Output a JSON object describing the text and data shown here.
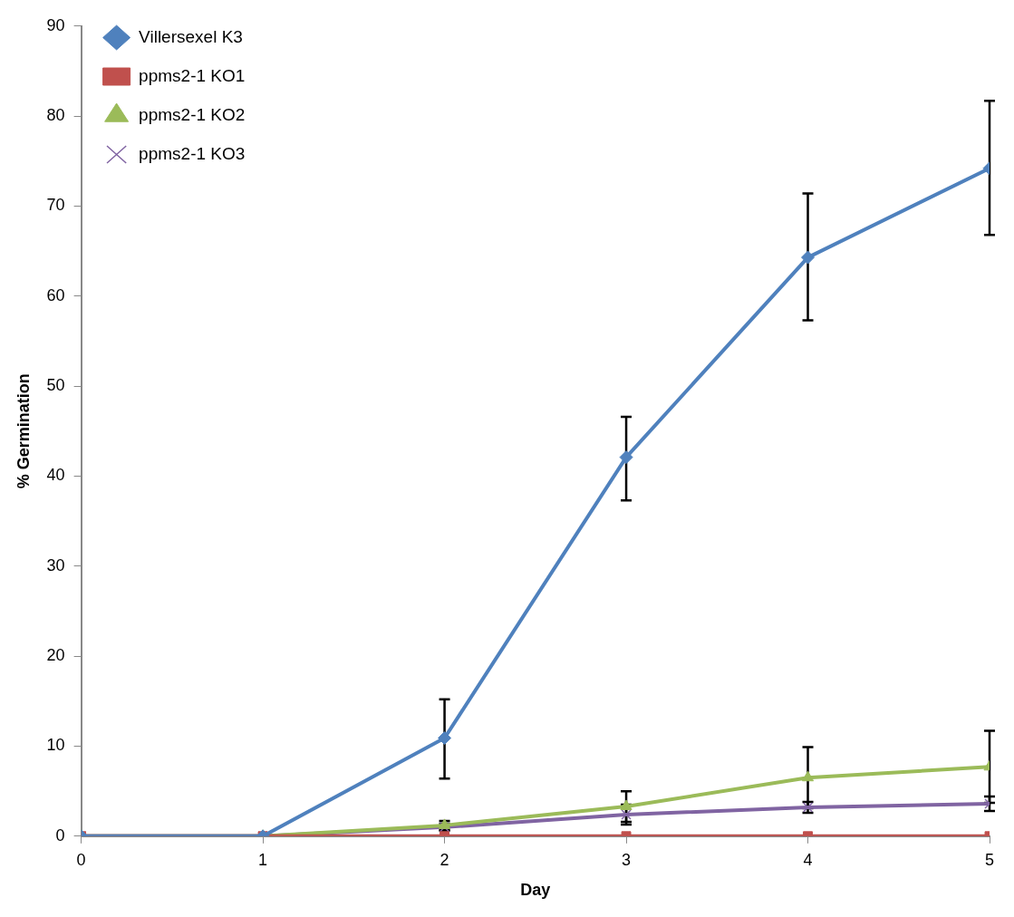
{
  "chart_data": {
    "type": "line",
    "xlabel": "Day",
    "ylabel": "% Germination",
    "x": [
      0,
      1,
      2,
      3,
      4,
      5
    ],
    "xlim": [
      0,
      5
    ],
    "xticks": [
      0,
      1,
      2,
      3,
      4,
      5
    ],
    "ylim": [
      0,
      90
    ],
    "yticks": [
      0,
      10,
      20,
      30,
      40,
      50,
      60,
      70,
      80,
      90
    ],
    "grid": false,
    "legend": "top left",
    "series": [
      {
        "name": "Villersexel K3",
        "color": "#4f81bd",
        "marker": "diamond",
        "values": [
          0,
          0,
          10.9,
          42.1,
          64.3,
          74.2
        ],
        "errors": [
          null,
          null,
          [
            6.4,
            15.2
          ],
          [
            37.3,
            46.6
          ],
          [
            57.3,
            71.4
          ],
          [
            66.8,
            81.7
          ]
        ]
      },
      {
        "name": "ppms2-1 KO1",
        "color": "#c0504d",
        "marker": "square",
        "values": [
          0,
          0,
          0,
          0,
          0,
          0
        ]
      },
      {
        "name": "ppms2-1 KO2",
        "color": "#9bbb59",
        "marker": "triangle",
        "values": [
          0,
          0,
          1.2,
          3.3,
          6.5,
          7.7
        ],
        "errors": [
          null,
          null,
          0.5,
          1.7,
          3.4,
          4
        ]
      },
      {
        "name": "ppms2-1 KO3",
        "color": "#8064a2",
        "marker": "cross",
        "values": [
          0,
          0,
          1.0,
          2.4,
          3.2,
          3.6
        ],
        "errors": [
          null,
          null,
          0.4,
          1.1,
          0.6,
          0.8
        ]
      }
    ]
  }
}
